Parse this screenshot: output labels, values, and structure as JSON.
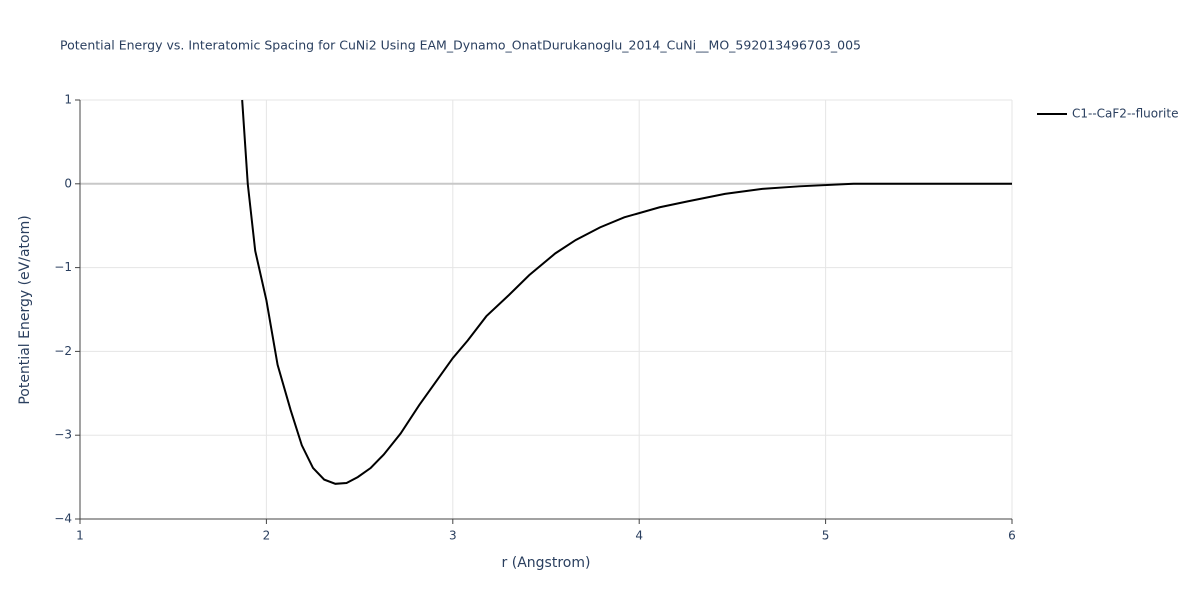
{
  "chart_data": {
    "type": "line",
    "title": "Potential Energy vs. Interatomic Spacing for CuNi2 Using EAM_Dynamo_OnatDurukanoglu_2014_CuNi__MO_592013496703_005",
    "x_label": "r (Angstrom)",
    "y_label": "Potential Energy (eV/atom)",
    "x": [
      1.87,
      1.9,
      1.94,
      2.0,
      2.06,
      2.13,
      2.19,
      2.25,
      2.31,
      2.37,
      2.43,
      2.49,
      2.56,
      2.63,
      2.72,
      2.82,
      3.0,
      3.08,
      3.18,
      3.3,
      3.41,
      3.55,
      3.66,
      3.79,
      3.92,
      4.11,
      4.26,
      4.46,
      4.66,
      4.86,
      5.15,
      5.4,
      6.0
    ],
    "series": [
      {
        "name": "C1--CaF2--fluorite",
        "color": "#000000",
        "values": [
          1.0,
          0.0,
          -0.8,
          -1.39,
          -2.16,
          -2.7,
          -3.12,
          -3.39,
          -3.53,
          -3.58,
          -3.57,
          -3.5,
          -3.39,
          -3.23,
          -2.98,
          -2.64,
          -2.08,
          -1.87,
          -1.58,
          -1.33,
          -1.09,
          -0.83,
          -0.67,
          -0.52,
          -0.4,
          -0.28,
          -0.21,
          -0.12,
          -0.06,
          -0.03,
          0.0,
          0.0,
          0.0
        ]
      }
    ],
    "xlim": [
      1,
      6
    ],
    "xticks": [
      1,
      2,
      3,
      4,
      5,
      6
    ],
    "ylim": [
      -4,
      1
    ],
    "yticks": [
      {
        "value": -4,
        "label": "−4"
      },
      {
        "value": -3,
        "label": "−3"
      },
      {
        "value": -2,
        "label": "−2"
      },
      {
        "value": -1,
        "label": "−1"
      },
      0,
      1
    ],
    "grid": true,
    "legend_position": "right"
  }
}
